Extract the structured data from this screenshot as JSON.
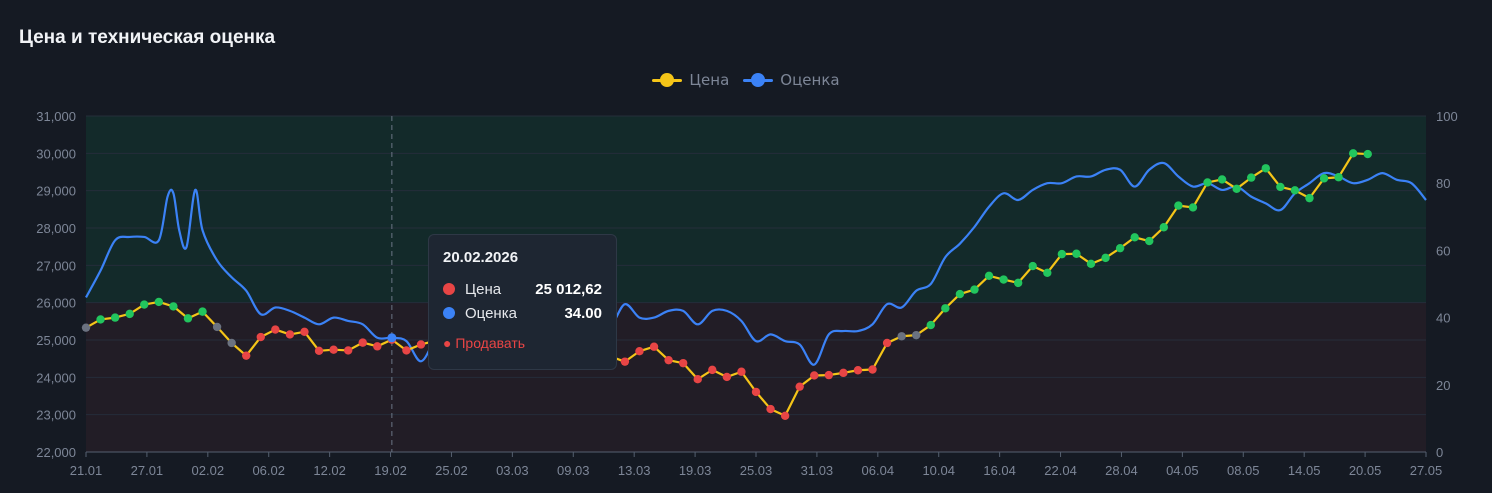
{
  "title": "Цена и техническая оценка",
  "legend": [
    {
      "label": "Цена",
      "color": "#f5c518"
    },
    {
      "label": "Оценка",
      "color": "#3b82f6"
    }
  ],
  "tooltip": {
    "date": "20.02.2026",
    "rows": [
      {
        "label": "Цена",
        "value": "25 012,62",
        "color": "#e84545"
      },
      {
        "label": "Оценка",
        "value": "34.00",
        "color": "#3b82f6"
      }
    ],
    "signal": "● Продавать"
  },
  "colors": {
    "price_line": "#f5c518",
    "score_line": "#3b82f6",
    "buy": "#22c55e",
    "sell": "#e84545",
    "neutral": "#6b7280",
    "buy_zone": "#132a2a",
    "sell_zone": "#221d26"
  },
  "chart_data": {
    "type": "line",
    "x_tick_labels": [
      "21.01",
      "27.01",
      "02.02",
      "06.02",
      "12.02",
      "19.02",
      "25.02",
      "03.03",
      "09.03",
      "13.03",
      "19.03",
      "25.03",
      "31.03",
      "06.04",
      "10.04",
      "16.04",
      "22.04",
      "28.04",
      "04.05",
      "08.05",
      "14.05",
      "20.05",
      "27.05"
    ],
    "y_left": {
      "ticks": [
        "31,000",
        "30,000",
        "29,000",
        "28,000",
        "27,000",
        "26,000",
        "25,000",
        "24,000",
        "23,000",
        "22,000"
      ],
      "range": [
        22000,
        31000
      ]
    },
    "y_right": {
      "ticks": [
        "100",
        "80",
        "60",
        "40",
        "20",
        "0"
      ],
      "range": [
        0,
        100
      ]
    },
    "zones": [
      {
        "axis": "left",
        "from": 26000,
        "to": 31000,
        "meaning": "buy"
      },
      {
        "axis": "left",
        "from": 22000,
        "to": 26000,
        "meaning": "sell"
      }
    ],
    "highlight_x_index": 21,
    "n_points": 93,
    "series": [
      {
        "name": "Цена",
        "axis": "left",
        "points": [
          [
            0,
            25330,
            "n"
          ],
          [
            1,
            25550,
            "b"
          ],
          [
            2,
            25600,
            "b"
          ],
          [
            3,
            25700,
            "b"
          ],
          [
            4,
            25950,
            "b"
          ],
          [
            5,
            26020,
            "b"
          ],
          [
            6,
            25900,
            "b"
          ],
          [
            7,
            25580,
            "b"
          ],
          [
            8,
            25760,
            "b"
          ],
          [
            9,
            25350,
            "n"
          ],
          [
            10,
            24920,
            "n"
          ],
          [
            11,
            24580,
            "s"
          ],
          [
            12,
            25080,
            "s"
          ],
          [
            13,
            25280,
            "s"
          ],
          [
            14,
            25150,
            "s"
          ],
          [
            15,
            25220,
            "s"
          ],
          [
            16,
            24710,
            "s"
          ],
          [
            17,
            24740,
            "s"
          ],
          [
            18,
            24720,
            "s"
          ],
          [
            19,
            24930,
            "s"
          ],
          [
            20,
            24830,
            "s"
          ],
          [
            21,
            25010,
            "s"
          ],
          [
            22,
            24720,
            "s"
          ],
          [
            23,
            24880,
            "s"
          ],
          [
            24,
            24980,
            "s"
          ],
          [
            25,
            25020,
            "s"
          ],
          [
            26,
            24960,
            "s"
          ],
          [
            27,
            24900,
            "s"
          ],
          [
            28,
            24810,
            "s"
          ],
          [
            29,
            24700,
            "s"
          ],
          [
            30,
            24760,
            "s"
          ],
          [
            31,
            24650,
            "s"
          ],
          [
            32,
            24700,
            "s"
          ],
          [
            33,
            24740,
            "s"
          ],
          [
            34,
            24600,
            "s"
          ],
          [
            35,
            24680,
            "s"
          ],
          [
            36,
            24560,
            "s"
          ],
          [
            37,
            24420,
            "s"
          ],
          [
            38,
            24700,
            "s"
          ],
          [
            39,
            24820,
            "s"
          ],
          [
            40,
            24460,
            "s"
          ],
          [
            41,
            24380,
            "s"
          ],
          [
            42,
            23950,
            "s"
          ],
          [
            43,
            24200,
            "s"
          ],
          [
            44,
            24010,
            "s"
          ],
          [
            45,
            24150,
            "s"
          ],
          [
            46,
            23610,
            "s"
          ],
          [
            47,
            23150,
            "s"
          ],
          [
            48,
            22970,
            "s"
          ],
          [
            49,
            23750,
            "s"
          ],
          [
            50,
            24050,
            "s"
          ],
          [
            51,
            24060,
            "s"
          ],
          [
            52,
            24120,
            "s"
          ],
          [
            53,
            24190,
            "s"
          ],
          [
            54,
            24210,
            "s"
          ],
          [
            55,
            24920,
            "s"
          ],
          [
            56,
            25100,
            "n"
          ],
          [
            57,
            25130,
            "n"
          ],
          [
            58,
            25400,
            "b"
          ],
          [
            59,
            25850,
            "b"
          ],
          [
            60,
            26230,
            "b"
          ],
          [
            61,
            26350,
            "b"
          ],
          [
            62,
            26720,
            "b"
          ],
          [
            63,
            26620,
            "b"
          ],
          [
            64,
            26530,
            "b"
          ],
          [
            65,
            26980,
            "b"
          ],
          [
            66,
            26800,
            "b"
          ],
          [
            67,
            27300,
            "b"
          ],
          [
            68,
            27310,
            "b"
          ],
          [
            69,
            27040,
            "b"
          ],
          [
            70,
            27200,
            "b"
          ],
          [
            71,
            27460,
            "b"
          ],
          [
            72,
            27750,
            "b"
          ],
          [
            73,
            27650,
            "b"
          ],
          [
            74,
            28020,
            "b"
          ],
          [
            75,
            28600,
            "b"
          ],
          [
            76,
            28550,
            "b"
          ],
          [
            77,
            29220,
            "b"
          ],
          [
            78,
            29300,
            "b"
          ],
          [
            79,
            29050,
            "b"
          ],
          [
            80,
            29350,
            "b"
          ],
          [
            81,
            29600,
            "b"
          ],
          [
            82,
            29100,
            "b"
          ],
          [
            83,
            29010,
            "b"
          ],
          [
            84,
            28800,
            "b"
          ],
          [
            85,
            29330,
            "b"
          ],
          [
            86,
            29360,
            "b"
          ],
          [
            87,
            30000,
            "b"
          ],
          [
            88,
            29980,
            "b"
          ]
        ]
      },
      {
        "name": "Оценка",
        "axis": "right",
        "points": [
          [
            0,
            46
          ],
          [
            1,
            54
          ],
          [
            2,
            63
          ],
          [
            3,
            64
          ],
          [
            4,
            64
          ],
          [
            5,
            63
          ],
          [
            5.6,
            76
          ],
          [
            6,
            77
          ],
          [
            6.4,
            66
          ],
          [
            6.9,
            61
          ],
          [
            7.5,
            78
          ],
          [
            8,
            66
          ],
          [
            9,
            57
          ],
          [
            10,
            52
          ],
          [
            11,
            48
          ],
          [
            12,
            41
          ],
          [
            13,
            43
          ],
          [
            14,
            42
          ],
          [
            15,
            40
          ],
          [
            16,
            38
          ],
          [
            17,
            40
          ],
          [
            18,
            39
          ],
          [
            19,
            38
          ],
          [
            20,
            34
          ],
          [
            21,
            34
          ],
          [
            22,
            33
          ],
          [
            23,
            27
          ],
          [
            24,
            34
          ],
          [
            25,
            40
          ],
          [
            26,
            42
          ],
          [
            27,
            41
          ],
          [
            28,
            40
          ],
          [
            29,
            40
          ],
          [
            30,
            43
          ],
          [
            31,
            42
          ],
          [
            32,
            38
          ],
          [
            33,
            41
          ],
          [
            34,
            43
          ],
          [
            35,
            44
          ],
          [
            36,
            38
          ],
          [
            37,
            44
          ],
          [
            38,
            40
          ],
          [
            39,
            40
          ],
          [
            40,
            42
          ],
          [
            41,
            42
          ],
          [
            42,
            38
          ],
          [
            43,
            42
          ],
          [
            44,
            42
          ],
          [
            45,
            39
          ],
          [
            46,
            33
          ],
          [
            47,
            35
          ],
          [
            48,
            33
          ],
          [
            49,
            32
          ],
          [
            50,
            26
          ],
          [
            51,
            35
          ],
          [
            52,
            36
          ],
          [
            53,
            36
          ],
          [
            54,
            38
          ],
          [
            55,
            44
          ],
          [
            56,
            43
          ],
          [
            57,
            48
          ],
          [
            58,
            50
          ],
          [
            59,
            58
          ],
          [
            60,
            62
          ],
          [
            61,
            67
          ],
          [
            62,
            73
          ],
          [
            63,
            77
          ],
          [
            64,
            75
          ],
          [
            65,
            78
          ],
          [
            66,
            80
          ],
          [
            67,
            80
          ],
          [
            68,
            82
          ],
          [
            69,
            82
          ],
          [
            70,
            84
          ],
          [
            71,
            84
          ],
          [
            72,
            79
          ],
          [
            73,
            84
          ],
          [
            74,
            86
          ],
          [
            75,
            82
          ],
          [
            76,
            79
          ],
          [
            77,
            80
          ],
          [
            78,
            78
          ],
          [
            79,
            79
          ],
          [
            80,
            76
          ],
          [
            81,
            74
          ],
          [
            82,
            72
          ],
          [
            83,
            77
          ],
          [
            84,
            80
          ],
          [
            85,
            83
          ],
          [
            86,
            82
          ],
          [
            87,
            80
          ],
          [
            88,
            81
          ],
          [
            89,
            83
          ],
          [
            90,
            81
          ],
          [
            91,
            80
          ],
          [
            92,
            75
          ]
        ]
      }
    ]
  }
}
